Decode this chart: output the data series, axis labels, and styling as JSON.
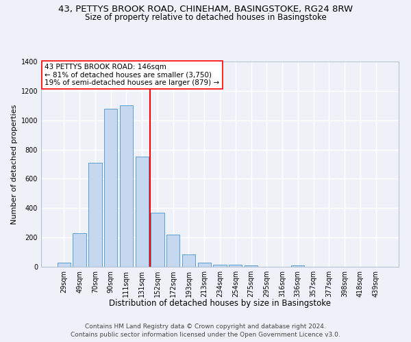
{
  "title1": "43, PETTYS BROOK ROAD, CHINEHAM, BASINGSTOKE, RG24 8RW",
  "title2": "Size of property relative to detached houses in Basingstoke",
  "xlabel": "Distribution of detached houses by size in Basingstoke",
  "ylabel": "Number of detached properties",
  "categories": [
    "29sqm",
    "49sqm",
    "70sqm",
    "90sqm",
    "111sqm",
    "131sqm",
    "152sqm",
    "172sqm",
    "193sqm",
    "213sqm",
    "234sqm",
    "254sqm",
    "275sqm",
    "295sqm",
    "316sqm",
    "336sqm",
    "357sqm",
    "377sqm",
    "398sqm",
    "418sqm",
    "439sqm"
  ],
  "values": [
    30,
    230,
    710,
    1080,
    1100,
    750,
    370,
    220,
    85,
    30,
    15,
    15,
    10,
    0,
    0,
    10,
    0,
    0,
    0,
    0,
    0
  ],
  "bar_color": "#c5d8f0",
  "bar_edge_color": "#5a9fd4",
  "vline_x": 5.5,
  "vline_color": "red",
  "annotation_text": "43 PETTYS BROOK ROAD: 146sqm\n← 81% of detached houses are smaller (3,750)\n19% of semi-detached houses are larger (879) →",
  "annotation_box_color": "white",
  "annotation_box_edge": "red",
  "ylim": [
    0,
    1400
  ],
  "yticks": [
    0,
    200,
    400,
    600,
    800,
    1000,
    1200,
    1400
  ],
  "footer1": "Contains HM Land Registry data © Crown copyright and database right 2024.",
  "footer2": "Contains public sector information licensed under the Open Government Licence v3.0.",
  "background_color": "#eef2f8",
  "grid_color": "white",
  "title1_fontsize": 9.5,
  "title2_fontsize": 8.5,
  "xlabel_fontsize": 8.5,
  "ylabel_fontsize": 8,
  "tick_fontsize": 7,
  "footer_fontsize": 6.5,
  "ann_fontsize": 7.5
}
